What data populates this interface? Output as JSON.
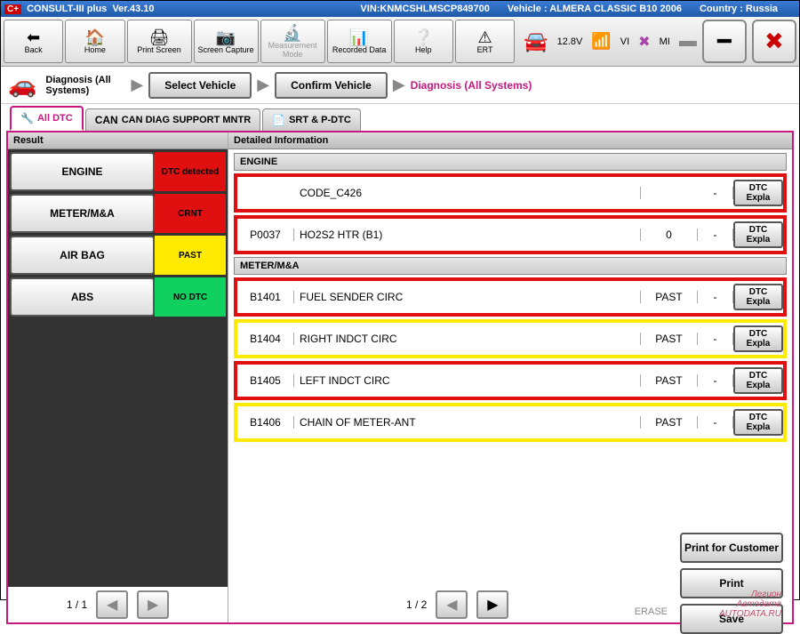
{
  "header": {
    "app_name": "CONSULT-III plus",
    "version": "Ver.43.10",
    "vin_label": "VIN:",
    "vin": "KNMCSHLMSCP849700",
    "vehicle_label": "Vehicle :",
    "vehicle": "ALMERA CLASSIC B10",
    "year": "2006",
    "country_label": "Country :",
    "country": "Russia"
  },
  "toolbar": {
    "back": "Back",
    "home": "Home",
    "print_screen": "Print Screen",
    "screen_capture": "Screen Capture",
    "measurement_mode": "Measurement Mode",
    "recorded_data": "Recorded Data",
    "help": "Help",
    "ert": "ERT",
    "voltage": "12.8V",
    "vi": "VI",
    "mi": "MI"
  },
  "breadcrumb": {
    "title": "Diagnosis (All Systems)",
    "step1": "Select Vehicle",
    "step2": "Confirm Vehicle",
    "step3": "Diagnosis (All Systems)"
  },
  "tabs": {
    "t1": "All DTC",
    "t2": "CAN DIAG SUPPORT MNTR",
    "t3": "SRT & P-DTC"
  },
  "left": {
    "header": "Result",
    "rows": [
      {
        "name": "ENGINE",
        "status": "DTC detected",
        "color": "st-red"
      },
      {
        "name": "METER/M&A",
        "status": "CRNT",
        "color": "st-red"
      },
      {
        "name": "AIR BAG",
        "status": "PAST",
        "color": "st-yellow"
      },
      {
        "name": "ABS",
        "status": "NO DTC",
        "color": "st-green"
      }
    ],
    "page": "1 / 1"
  },
  "right": {
    "header": "Detailed Information",
    "groups": [
      {
        "title": "ENGINE",
        "rows": [
          {
            "code": "",
            "desc": "CODE_C426",
            "stat": "",
            "n": "-",
            "border": "brd-red"
          },
          {
            "code": "P0037",
            "desc": "HO2S2 HTR (B1)",
            "stat": "0",
            "n": "-",
            "border": "brd-red"
          }
        ]
      },
      {
        "title": "METER/M&A",
        "rows": [
          {
            "code": "B1401",
            "desc": "FUEL SENDER CIRC",
            "stat": "PAST",
            "n": "-",
            "border": "brd-red"
          },
          {
            "code": "B1404",
            "desc": "RIGHT INDCT CIRC",
            "stat": "PAST",
            "n": "-",
            "border": "brd-yellow"
          },
          {
            "code": "B1405",
            "desc": "LEFT INDCT CIRC",
            "stat": "PAST",
            "n": "-",
            "border": "brd-red"
          },
          {
            "code": "B1406",
            "desc": "CHAIN OF METER-ANT",
            "stat": "PAST",
            "n": "-",
            "border": "brd-yellow"
          }
        ]
      }
    ],
    "expla": "DTC Expla",
    "page": "1 / 2",
    "erase": "ERASE"
  },
  "actions": {
    "print_customer": "Print for Customer",
    "print": "Print",
    "save": "Save"
  },
  "watermark": {
    "l1": "Легион",
    "l2": "Автодата",
    "l3": "AUTODATA.RU"
  },
  "colors": {
    "accent": "#c6187e",
    "red": "#e01010",
    "yellow": "#ffea00",
    "green": "#10d060",
    "header_blue": "#1e5aa8"
  }
}
